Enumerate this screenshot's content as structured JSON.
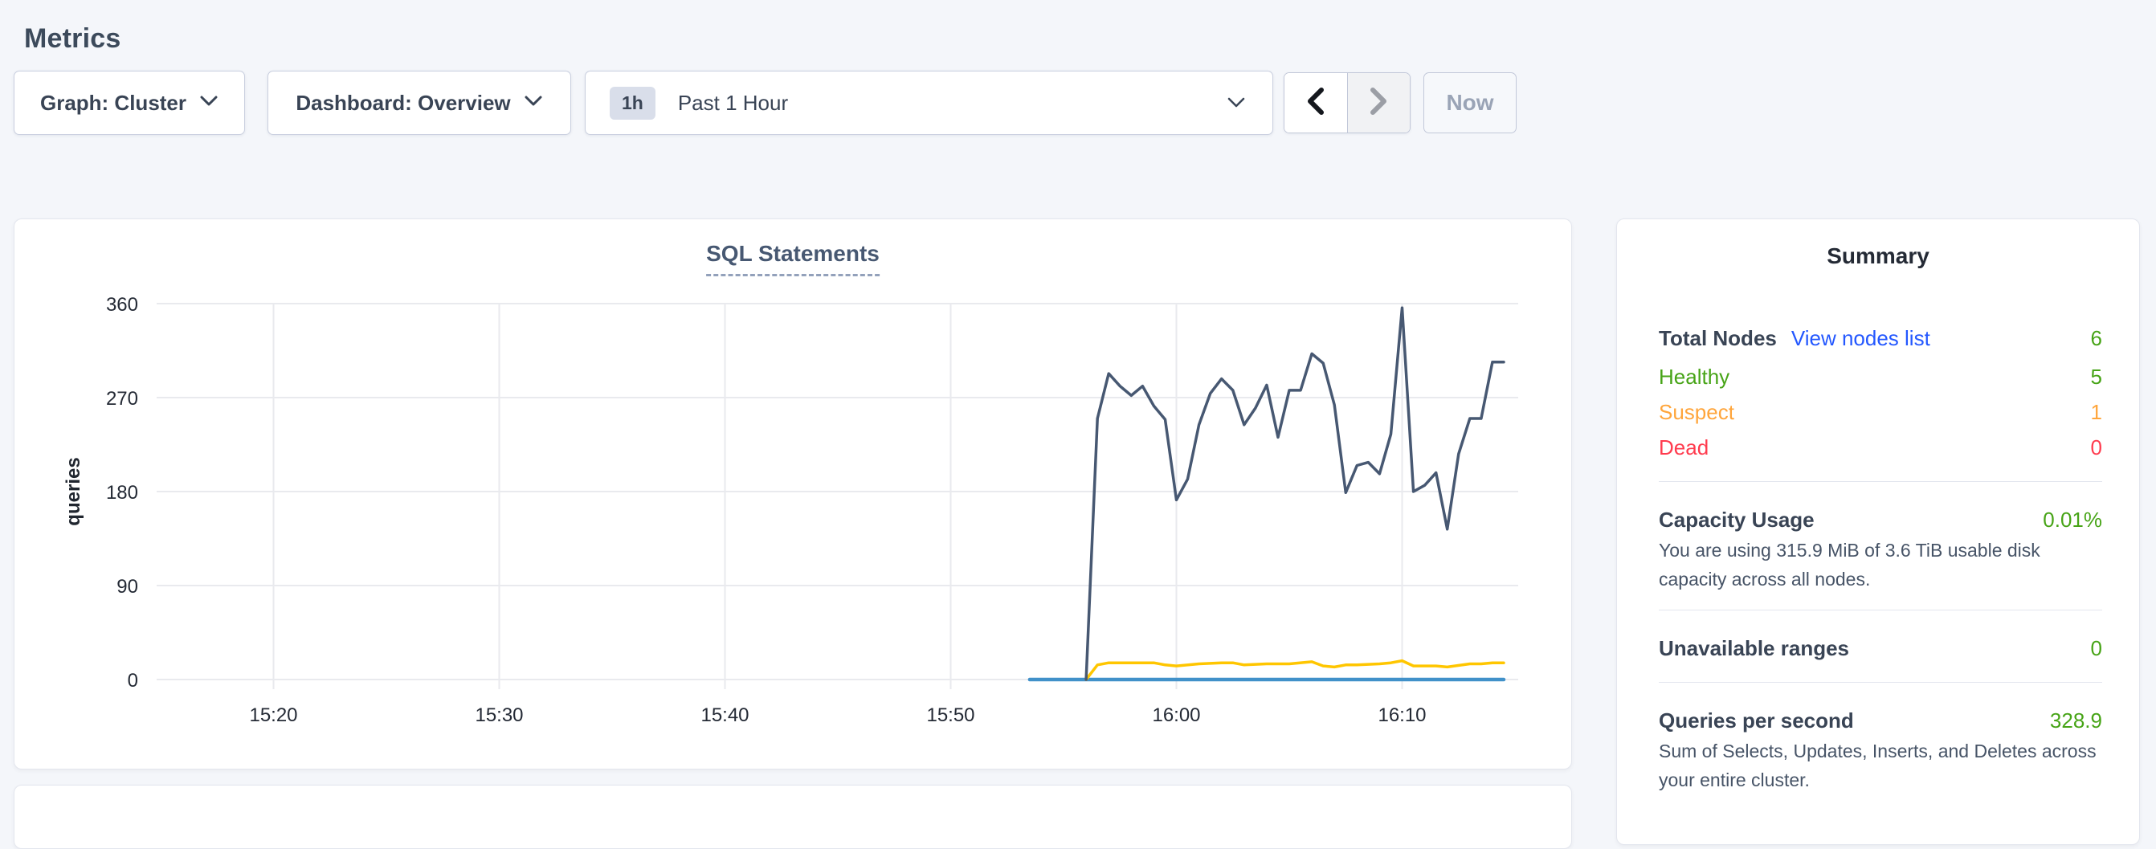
{
  "page": {
    "title": "Metrics"
  },
  "toolbar": {
    "graph_dropdown": {
      "label": "Graph: Cluster"
    },
    "dashboard_dropdown": {
      "label": "Dashboard: Overview"
    },
    "time_selector": {
      "badge": "1h",
      "label": "Past 1 Hour"
    },
    "now_button": {
      "label": "Now"
    },
    "icons": {
      "prev": "chevron-left",
      "next": "chevron-right",
      "open": "chevron-down"
    }
  },
  "chart_card": {
    "title": "SQL Statements",
    "ylabel": "queries"
  },
  "chart_data": {
    "type": "line",
    "title": "SQL Statements",
    "xlabel": "",
    "ylabel": "queries",
    "ylim": [
      0,
      360
    ],
    "y_ticks": [
      0,
      90,
      180,
      270,
      360
    ],
    "x_ticks": [
      "15:20",
      "15:30",
      "15:40",
      "15:50",
      "16:00",
      "16:10"
    ],
    "x_range": [
      "15:15",
      "16:15"
    ],
    "grid": true,
    "legend_position": "none",
    "series": [
      {
        "name": "flat-zero-line",
        "color": "#4191C9",
        "width": 4.5,
        "points": [
          [
            "15:53:30",
            0
          ],
          [
            "16:14:30",
            0
          ]
        ]
      },
      {
        "name": "yellow-line",
        "color": "#FFC600",
        "width": 3.5,
        "points": [
          [
            "15:56:00",
            0
          ],
          [
            "15:56:30",
            14
          ],
          [
            "15:57:00",
            16
          ],
          [
            "15:58:00",
            16
          ],
          [
            "15:59:00",
            16
          ],
          [
            "15:59:30",
            14
          ],
          [
            "16:00:00",
            13
          ],
          [
            "16:01:00",
            15
          ],
          [
            "16:02:00",
            16
          ],
          [
            "16:02:30",
            16
          ],
          [
            "16:03:00",
            14
          ],
          [
            "16:04:00",
            15
          ],
          [
            "16:05:00",
            15
          ],
          [
            "16:06:00",
            17
          ],
          [
            "16:06:30",
            13
          ],
          [
            "16:07:00",
            12
          ],
          [
            "16:07:30",
            14
          ],
          [
            "16:08:00",
            14
          ],
          [
            "16:09:00",
            15
          ],
          [
            "16:09:30",
            16
          ],
          [
            "16:10:00",
            18
          ],
          [
            "16:10:30",
            13
          ],
          [
            "16:11:30",
            13
          ],
          [
            "16:12:00",
            12
          ],
          [
            "16:13:00",
            15
          ],
          [
            "16:13:30",
            15
          ],
          [
            "16:14:00",
            16
          ],
          [
            "16:14:30",
            16
          ]
        ]
      },
      {
        "name": "dark-navy-line",
        "color": "#475872",
        "width": 3.5,
        "points": [
          [
            "15:56:00",
            0
          ],
          [
            "15:56:30",
            250
          ],
          [
            "15:57:00",
            293
          ],
          [
            "15:57:30",
            281
          ],
          [
            "15:58:00",
            272
          ],
          [
            "15:58:30",
            281
          ],
          [
            "15:59:00",
            262
          ],
          [
            "15:59:30",
            249
          ],
          [
            "16:00:00",
            172
          ],
          [
            "16:00:30",
            192
          ],
          [
            "16:01:00",
            244
          ],
          [
            "16:01:30",
            274
          ],
          [
            "16:02:00",
            288
          ],
          [
            "16:02:30",
            277
          ],
          [
            "16:03:00",
            244
          ],
          [
            "16:03:30",
            260
          ],
          [
            "16:04:00",
            282
          ],
          [
            "16:04:30",
            232
          ],
          [
            "16:05:00",
            277
          ],
          [
            "16:05:30",
            277
          ],
          [
            "16:06:00",
            312
          ],
          [
            "16:06:30",
            303
          ],
          [
            "16:07:00",
            263
          ],
          [
            "16:07:30",
            179
          ],
          [
            "16:08:00",
            205
          ],
          [
            "16:08:30",
            208
          ],
          [
            "16:09:00",
            197
          ],
          [
            "16:09:30",
            235
          ],
          [
            "16:10:00",
            356
          ],
          [
            "16:10:30",
            180
          ],
          [
            "16:11:00",
            186
          ],
          [
            "16:11:30",
            198
          ],
          [
            "16:12:00",
            144
          ],
          [
            "16:12:30",
            216
          ],
          [
            "16:13:00",
            250
          ],
          [
            "16:13:30",
            250
          ],
          [
            "16:14:00",
            304
          ],
          [
            "16:14:30",
            304
          ]
        ]
      }
    ]
  },
  "summary": {
    "title": "Summary",
    "colors": {
      "green": "#47A417",
      "orange": "#FFA53B",
      "red": "#FF3B4E",
      "link_blue": "#2357FF"
    },
    "nodes": {
      "total_label": "Total Nodes",
      "view_link": "View nodes list",
      "total_value": "6",
      "healthy_label": "Healthy",
      "healthy_value": "5",
      "suspect_label": "Suspect",
      "suspect_value": "1",
      "dead_label": "Dead",
      "dead_value": "0"
    },
    "capacity": {
      "label": "Capacity Usage",
      "value": "0.01%",
      "description": "You are using 315.9 MiB of 3.6 TiB usable disk capacity across all nodes."
    },
    "unavailable": {
      "label": "Unavailable ranges",
      "value": "0"
    },
    "qps": {
      "label": "Queries per second",
      "value": "328.9",
      "description": "Sum of Selects, Updates, Inserts, and Deletes across your entire cluster."
    }
  }
}
